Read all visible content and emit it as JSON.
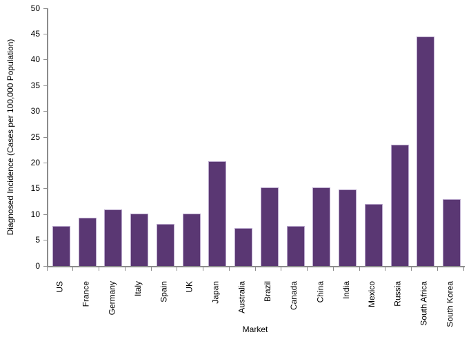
{
  "chart_data": {
    "type": "bar",
    "title": "",
    "xlabel": "Market",
    "ylabel": "Diagnosed Incidence (Cases per 100,000 Population)",
    "categories": [
      "US",
      "France",
      "Germany",
      "Italy",
      "Spain",
      "UK",
      "Japan",
      "Australia",
      "Brazil",
      "Canada",
      "China",
      "India",
      "Mexico",
      "Russia",
      "South Africa",
      "South Korea"
    ],
    "values": [
      7.8,
      9.3,
      11.0,
      10.1,
      8.2,
      10.2,
      20.3,
      7.4,
      15.2,
      7.7,
      15.3,
      14.9,
      12.0,
      23.5,
      44.5,
      13.0
    ],
    "ylim": [
      0,
      50
    ],
    "yticks": [
      0,
      5,
      10,
      15,
      20,
      25,
      30,
      35,
      40,
      45,
      50
    ],
    "grid": false,
    "legend": false,
    "colors": {
      "bar_fill": "#5a3773",
      "bar_border": "#b9a7cc",
      "axis": "#8c8c8c",
      "text": "#000000",
      "background": "#ffffff"
    }
  }
}
